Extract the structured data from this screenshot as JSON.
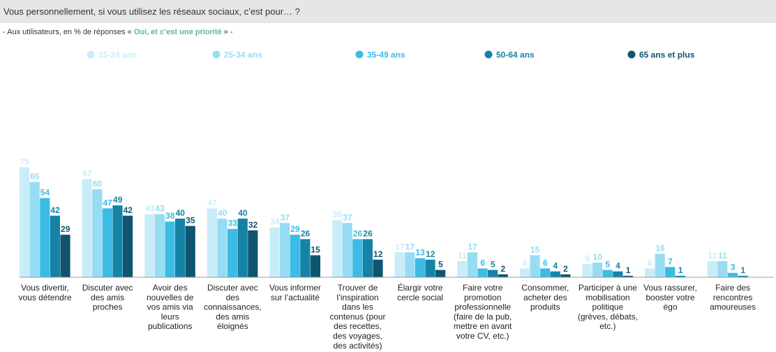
{
  "header": {
    "question": "Vous personnellement, si vous utilisez les réseaux sociaux, c’est pour… ?"
  },
  "subtitle": {
    "prefix": "- Aux utilisateurs, en % de réponses «",
    "highlight": "Oui, et c’est une priorité",
    "suffix": "» -"
  },
  "colors": {
    "highlight": "#5bb5a6",
    "series": [
      "#c9edf8",
      "#96dcf3",
      "#3cbbe5",
      "#1583a6",
      "#0f5570"
    ],
    "labels": [
      "#c9edf8",
      "#96dcf3",
      "#3cbbe5",
      "#1583a6",
      "#0f5570"
    ]
  },
  "chart_data": {
    "type": "bar",
    "legend_position": "top",
    "grid": false,
    "ylim": [
      0,
      80
    ],
    "categories": [
      [
        "Vous divertir,",
        "vous détendre"
      ],
      [
        "Discuter avec",
        "des amis",
        "proches"
      ],
      [
        "Avoir des",
        "nouvelles de",
        "vos amis via",
        "leurs",
        "publications"
      ],
      [
        "Discuter avec",
        "des",
        "connaissances,",
        "des amis",
        "éloignés"
      ],
      [
        "Vous informer",
        "sur l’actualité"
      ],
      [
        "Trouver de",
        "l’inspiration",
        "dans les",
        "contenus (pour",
        "des recettes,",
        "des voyages,",
        "des activités)"
      ],
      [
        "Élargir votre",
        "cercle social"
      ],
      [
        "Faire votre",
        "promotion",
        "professionnelle",
        "(faire de la pub,",
        "mettre en avant",
        "votre CV, etc.)"
      ],
      [
        "Consommer,",
        "acheter des",
        "produits"
      ],
      [
        "Participer à une",
        "mobilisation",
        "politique",
        "(grèves, débats,",
        "etc.)"
      ],
      [
        "Vous rassurer,",
        "booster votre",
        "égo"
      ],
      [
        "Faire des",
        "rencontres",
        "amoureuses"
      ]
    ],
    "series": [
      {
        "name": "15-24 ans",
        "values": [
          75,
          67,
          43,
          47,
          34,
          39,
          17,
          11,
          6,
          9,
          6,
          11
        ]
      },
      {
        "name": "25-34 ans",
        "values": [
          65,
          60,
          43,
          40,
          37,
          37,
          17,
          17,
          15,
          10,
          16,
          11
        ]
      },
      {
        "name": "35-49 ans",
        "values": [
          54,
          47,
          38,
          33,
          29,
          26,
          13,
          6,
          6,
          5,
          7,
          3
        ]
      },
      {
        "name": "50-64 ans",
        "values": [
          42,
          49,
          40,
          40,
          26,
          26,
          12,
          5,
          4,
          4,
          1,
          1
        ]
      },
      {
        "name": "65 ans et plus",
        "values": [
          29,
          42,
          35,
          32,
          15,
          12,
          5,
          2,
          2,
          1,
          null,
          null
        ]
      }
    ]
  }
}
